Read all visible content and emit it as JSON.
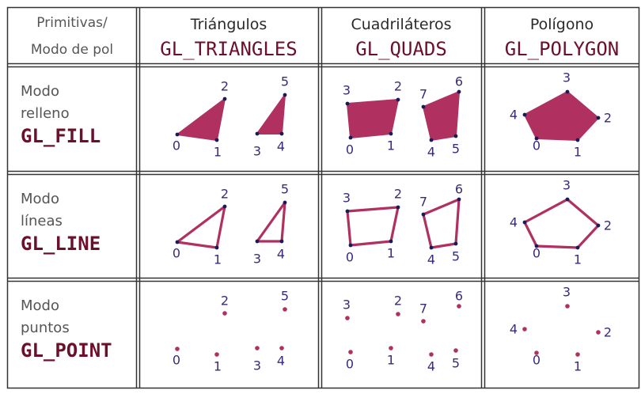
{
  "header": {
    "corner": [
      "Primitivas/",
      "Modo de pol"
    ],
    "columns": [
      {
        "title": "Triángulos",
        "code": "GL_TRIANGLES"
      },
      {
        "title": "Cuadriláteros",
        "code": "GL_QUADS"
      },
      {
        "title": "Polígono",
        "code": "GL_POLYGON"
      }
    ]
  },
  "rows": [
    {
      "lines": [
        "Modo",
        "relleno"
      ],
      "code": "GL_FILL"
    },
    {
      "lines": [
        "Modo",
        "líneas"
      ],
      "code": "GL_LINE"
    },
    {
      "lines": [
        "Modo",
        "puntos"
      ],
      "code": "GL_POINT"
    }
  ],
  "vertex_labels": {
    "triangles": [
      "0",
      "1",
      "2",
      "3",
      "4",
      "5"
    ],
    "quads": [
      "0",
      "1",
      "2",
      "3",
      "4",
      "5",
      "6",
      "7"
    ],
    "polygon": [
      "0",
      "1",
      "2",
      "3",
      "4"
    ]
  },
  "colors": {
    "fill": "#b03060",
    "line": "#b03060",
    "vertex": "#1a1a5a",
    "label": "#3a2a7a",
    "code": "#6b0f2a"
  }
}
